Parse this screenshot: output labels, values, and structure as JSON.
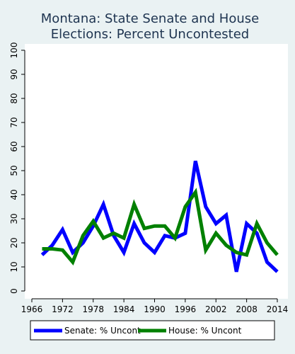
{
  "chart_data": {
    "type": "line",
    "title_lines": [
      "Montana: State Senate and House",
      "Elections: Percent Uncontested"
    ],
    "xlabel": "",
    "ylabel": "",
    "xlim": [
      1966,
      2014
    ],
    "ylim": [
      0,
      100
    ],
    "x_ticks": [
      1966,
      1972,
      1978,
      1984,
      1990,
      1996,
      2002,
      2008,
      2014
    ],
    "y_ticks": [
      0,
      10,
      20,
      30,
      40,
      50,
      60,
      70,
      80,
      90,
      100
    ],
    "grid": false,
    "legend_position": "bottom",
    "series": [
      {
        "name": "Senate: % Uncont",
        "color": "#0000FF",
        "x": [
          1968,
          1970,
          1972,
          1974,
          1976,
          1978,
          1980,
          1982,
          1984,
          1986,
          1988,
          1990,
          1992,
          1994,
          1996,
          1998,
          2000,
          2002,
          2004,
          2006,
          2008,
          2010,
          2012,
          2014
        ],
        "y": [
          15,
          19,
          25.5,
          16,
          20,
          27,
          36,
          23,
          16,
          28,
          20,
          16,
          23,
          22,
          24,
          54,
          35,
          28,
          31.5,
          8,
          28,
          24,
          12,
          8
        ]
      },
      {
        "name": "House: % Uncont",
        "color": "#008000",
        "x": [
          1968,
          1970,
          1972,
          1974,
          1976,
          1978,
          1980,
          1982,
          1984,
          1986,
          1988,
          1990,
          1992,
          1994,
          1996,
          1998,
          2000,
          2002,
          2004,
          2006,
          2008,
          2010,
          2012,
          2014
        ],
        "y": [
          17.5,
          17.5,
          17,
          12,
          23,
          29,
          22,
          24,
          22,
          36,
          26,
          27,
          27,
          22,
          35,
          41,
          17,
          24,
          19,
          16,
          15,
          28,
          20,
          15
        ]
      }
    ]
  }
}
